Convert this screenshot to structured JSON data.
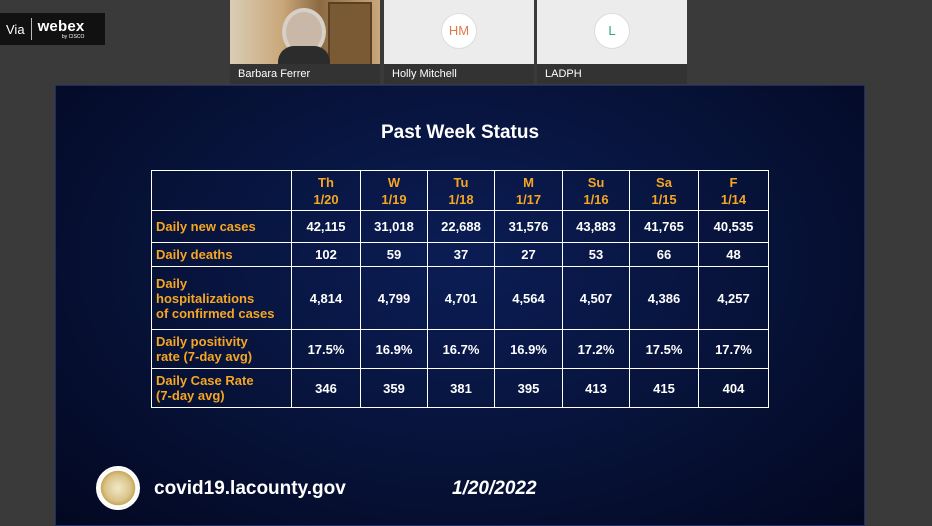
{
  "badge": {
    "via": "Via",
    "brand": "webex",
    "brand_sub": "by CISCO"
  },
  "participants": [
    {
      "name": "Barbara Ferrer",
      "initials": ""
    },
    {
      "name": "Holly Mitchell",
      "initials": "HM"
    },
    {
      "name": "LADPH",
      "initials": "L"
    }
  ],
  "slide": {
    "title": "Past Week Status",
    "columns": [
      {
        "day": "Th",
        "date": "1/20"
      },
      {
        "day": "W",
        "date": "1/19"
      },
      {
        "day": "Tu",
        "date": "1/18"
      },
      {
        "day": "M",
        "date": "1/17"
      },
      {
        "day": "Su",
        "date": "1/16"
      },
      {
        "day": "Sa",
        "date": "1/15"
      },
      {
        "day": "F",
        "date": "1/14"
      }
    ],
    "rows": [
      {
        "label_lines": [
          "Daily new cases"
        ],
        "values": [
          "42,115",
          "31,018",
          "22,688",
          "31,576",
          "43,883",
          "41,765",
          "40,535"
        ]
      },
      {
        "label_lines": [
          "Daily deaths"
        ],
        "values": [
          "102",
          "59",
          "37",
          "27",
          "53",
          "66",
          "48"
        ]
      },
      {
        "label_lines": [
          "Daily",
          "hospitalizations",
          "of confirmed cases"
        ],
        "values": [
          "4,814",
          "4,799",
          "4,701",
          "4,564",
          "4,507",
          "4,386",
          "4,257"
        ]
      },
      {
        "label_lines": [
          "Daily positivity",
          "rate (7-day avg)"
        ],
        "values": [
          "17.5%",
          "16.9%",
          "16.7%",
          "16.9%",
          "17.2%",
          "17.5%",
          "17.7%"
        ]
      },
      {
        "label_lines": [
          "Daily Case Rate",
          "(7-day avg)"
        ],
        "values": [
          "346",
          "359",
          "381",
          "395",
          "413",
          "415",
          "404"
        ]
      }
    ],
    "footer_url": "covid19.lacounty.gov",
    "footer_date": "1/20/2022"
  },
  "colors": {
    "header_accent": "#f5a623",
    "slide_bg": "#071238"
  }
}
